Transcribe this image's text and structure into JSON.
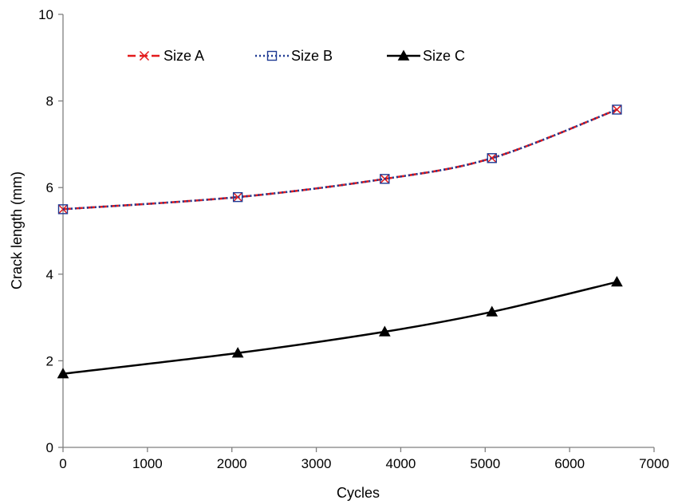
{
  "chart_data": {
    "type": "line",
    "xlabel": "Cycles",
    "ylabel": "Crack length (mm)",
    "xlim": [
      0,
      7000
    ],
    "ylim": [
      0,
      10
    ],
    "xticks": [
      0,
      1000,
      2000,
      3000,
      4000,
      5000,
      6000,
      7000
    ],
    "yticks": [
      0,
      2,
      4,
      6,
      8,
      10
    ],
    "grid": false,
    "legend_position": "top-left",
    "series": [
      {
        "name": "Size A",
        "color": "#e31a1c",
        "line_style": "dashed",
        "marker": "x",
        "x": [
          0,
          2070,
          3810,
          5080,
          6560
        ],
        "y": [
          5.5,
          5.78,
          6.2,
          6.68,
          7.8
        ]
      },
      {
        "name": "Size B",
        "color": "#1f3a93",
        "line_style": "dotted",
        "marker": "open-square",
        "x": [
          0,
          2070,
          3810,
          5080,
          6560
        ],
        "y": [
          5.5,
          5.78,
          6.2,
          6.68,
          7.8
        ]
      },
      {
        "name": "Size C",
        "color": "#000000",
        "line_style": "solid",
        "marker": "filled-triangle",
        "x": [
          0,
          2070,
          3810,
          5080,
          6560
        ],
        "y": [
          1.7,
          2.18,
          2.67,
          3.13,
          3.82
        ]
      }
    ]
  }
}
